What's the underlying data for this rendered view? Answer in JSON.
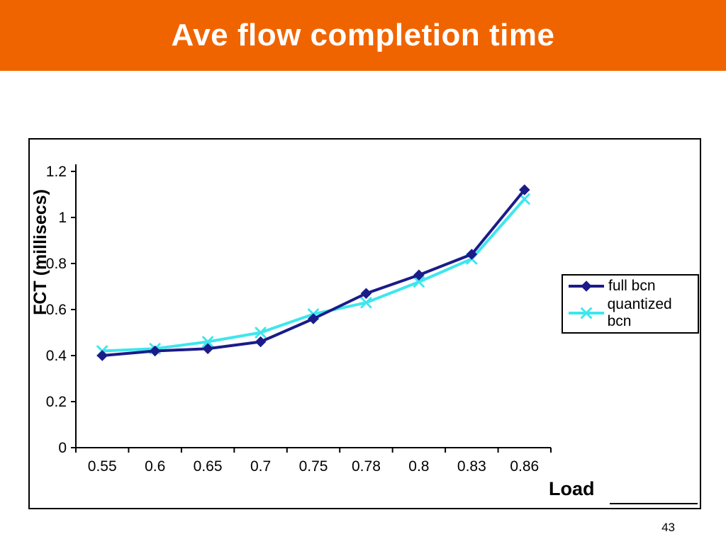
{
  "slide": {
    "title": "Ave flow completion time",
    "page_number": "43",
    "accent_color": "#F06400"
  },
  "chart_data": {
    "type": "line",
    "title": "",
    "xlabel": "Load",
    "ylabel": "FCT (millisecs)",
    "categories": [
      "0.55",
      "0.6",
      "0.65",
      "0.7",
      "0.75",
      "0.78",
      "0.8",
      "0.83",
      "0.86"
    ],
    "y_ticks": [
      "0",
      "0.2",
      "0.4",
      "0.6",
      "0.8",
      "1",
      "1.2"
    ],
    "ylim": [
      0,
      1.2
    ],
    "grid": false,
    "legend_position": "right",
    "series": [
      {
        "name": "full bcn",
        "color": "#1B1B8A",
        "marker": "diamond",
        "values": [
          0.4,
          0.42,
          0.43,
          0.46,
          0.56,
          0.67,
          0.75,
          0.84,
          1.12
        ]
      },
      {
        "name": "quantized bcn",
        "color": "#3EE6EE",
        "marker": "x",
        "values": [
          0.42,
          0.43,
          0.46,
          0.5,
          0.58,
          0.63,
          0.72,
          0.82,
          1.08
        ]
      }
    ]
  }
}
